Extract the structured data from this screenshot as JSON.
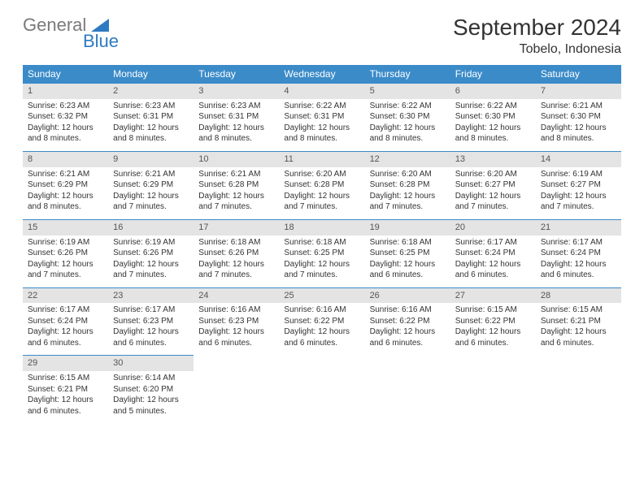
{
  "brand": {
    "text1": "General",
    "text2": "Blue"
  },
  "title": "September 2024",
  "location": "Tobelo, Indonesia",
  "colors": {
    "header_bg": "#3b8bc9",
    "header_text": "#ffffff",
    "daynum_bg": "#e4e4e4",
    "border": "#3b8bc9",
    "brand_gray": "#7a7a7a",
    "brand_blue": "#2e7ac2"
  },
  "day_headers": [
    "Sunday",
    "Monday",
    "Tuesday",
    "Wednesday",
    "Thursday",
    "Friday",
    "Saturday"
  ],
  "days": [
    {
      "n": "1",
      "sr": "Sunrise: 6:23 AM",
      "ss": "Sunset: 6:32 PM",
      "d1": "Daylight: 12 hours",
      "d2": "and 8 minutes."
    },
    {
      "n": "2",
      "sr": "Sunrise: 6:23 AM",
      "ss": "Sunset: 6:31 PM",
      "d1": "Daylight: 12 hours",
      "d2": "and 8 minutes."
    },
    {
      "n": "3",
      "sr": "Sunrise: 6:23 AM",
      "ss": "Sunset: 6:31 PM",
      "d1": "Daylight: 12 hours",
      "d2": "and 8 minutes."
    },
    {
      "n": "4",
      "sr": "Sunrise: 6:22 AM",
      "ss": "Sunset: 6:31 PM",
      "d1": "Daylight: 12 hours",
      "d2": "and 8 minutes."
    },
    {
      "n": "5",
      "sr": "Sunrise: 6:22 AM",
      "ss": "Sunset: 6:30 PM",
      "d1": "Daylight: 12 hours",
      "d2": "and 8 minutes."
    },
    {
      "n": "6",
      "sr": "Sunrise: 6:22 AM",
      "ss": "Sunset: 6:30 PM",
      "d1": "Daylight: 12 hours",
      "d2": "and 8 minutes."
    },
    {
      "n": "7",
      "sr": "Sunrise: 6:21 AM",
      "ss": "Sunset: 6:30 PM",
      "d1": "Daylight: 12 hours",
      "d2": "and 8 minutes."
    },
    {
      "n": "8",
      "sr": "Sunrise: 6:21 AM",
      "ss": "Sunset: 6:29 PM",
      "d1": "Daylight: 12 hours",
      "d2": "and 8 minutes."
    },
    {
      "n": "9",
      "sr": "Sunrise: 6:21 AM",
      "ss": "Sunset: 6:29 PM",
      "d1": "Daylight: 12 hours",
      "d2": "and 7 minutes."
    },
    {
      "n": "10",
      "sr": "Sunrise: 6:21 AM",
      "ss": "Sunset: 6:28 PM",
      "d1": "Daylight: 12 hours",
      "d2": "and 7 minutes."
    },
    {
      "n": "11",
      "sr": "Sunrise: 6:20 AM",
      "ss": "Sunset: 6:28 PM",
      "d1": "Daylight: 12 hours",
      "d2": "and 7 minutes."
    },
    {
      "n": "12",
      "sr": "Sunrise: 6:20 AM",
      "ss": "Sunset: 6:28 PM",
      "d1": "Daylight: 12 hours",
      "d2": "and 7 minutes."
    },
    {
      "n": "13",
      "sr": "Sunrise: 6:20 AM",
      "ss": "Sunset: 6:27 PM",
      "d1": "Daylight: 12 hours",
      "d2": "and 7 minutes."
    },
    {
      "n": "14",
      "sr": "Sunrise: 6:19 AM",
      "ss": "Sunset: 6:27 PM",
      "d1": "Daylight: 12 hours",
      "d2": "and 7 minutes."
    },
    {
      "n": "15",
      "sr": "Sunrise: 6:19 AM",
      "ss": "Sunset: 6:26 PM",
      "d1": "Daylight: 12 hours",
      "d2": "and 7 minutes."
    },
    {
      "n": "16",
      "sr": "Sunrise: 6:19 AM",
      "ss": "Sunset: 6:26 PM",
      "d1": "Daylight: 12 hours",
      "d2": "and 7 minutes."
    },
    {
      "n": "17",
      "sr": "Sunrise: 6:18 AM",
      "ss": "Sunset: 6:26 PM",
      "d1": "Daylight: 12 hours",
      "d2": "and 7 minutes."
    },
    {
      "n": "18",
      "sr": "Sunrise: 6:18 AM",
      "ss": "Sunset: 6:25 PM",
      "d1": "Daylight: 12 hours",
      "d2": "and 7 minutes."
    },
    {
      "n": "19",
      "sr": "Sunrise: 6:18 AM",
      "ss": "Sunset: 6:25 PM",
      "d1": "Daylight: 12 hours",
      "d2": "and 6 minutes."
    },
    {
      "n": "20",
      "sr": "Sunrise: 6:17 AM",
      "ss": "Sunset: 6:24 PM",
      "d1": "Daylight: 12 hours",
      "d2": "and 6 minutes."
    },
    {
      "n": "21",
      "sr": "Sunrise: 6:17 AM",
      "ss": "Sunset: 6:24 PM",
      "d1": "Daylight: 12 hours",
      "d2": "and 6 minutes."
    },
    {
      "n": "22",
      "sr": "Sunrise: 6:17 AM",
      "ss": "Sunset: 6:24 PM",
      "d1": "Daylight: 12 hours",
      "d2": "and 6 minutes."
    },
    {
      "n": "23",
      "sr": "Sunrise: 6:17 AM",
      "ss": "Sunset: 6:23 PM",
      "d1": "Daylight: 12 hours",
      "d2": "and 6 minutes."
    },
    {
      "n": "24",
      "sr": "Sunrise: 6:16 AM",
      "ss": "Sunset: 6:23 PM",
      "d1": "Daylight: 12 hours",
      "d2": "and 6 minutes."
    },
    {
      "n": "25",
      "sr": "Sunrise: 6:16 AM",
      "ss": "Sunset: 6:22 PM",
      "d1": "Daylight: 12 hours",
      "d2": "and 6 minutes."
    },
    {
      "n": "26",
      "sr": "Sunrise: 6:16 AM",
      "ss": "Sunset: 6:22 PM",
      "d1": "Daylight: 12 hours",
      "d2": "and 6 minutes."
    },
    {
      "n": "27",
      "sr": "Sunrise: 6:15 AM",
      "ss": "Sunset: 6:22 PM",
      "d1": "Daylight: 12 hours",
      "d2": "and 6 minutes."
    },
    {
      "n": "28",
      "sr": "Sunrise: 6:15 AM",
      "ss": "Sunset: 6:21 PM",
      "d1": "Daylight: 12 hours",
      "d2": "and 6 minutes."
    },
    {
      "n": "29",
      "sr": "Sunrise: 6:15 AM",
      "ss": "Sunset: 6:21 PM",
      "d1": "Daylight: 12 hours",
      "d2": "and 6 minutes."
    },
    {
      "n": "30",
      "sr": "Sunrise: 6:14 AM",
      "ss": "Sunset: 6:20 PM",
      "d1": "Daylight: 12 hours",
      "d2": "and 5 minutes."
    }
  ]
}
